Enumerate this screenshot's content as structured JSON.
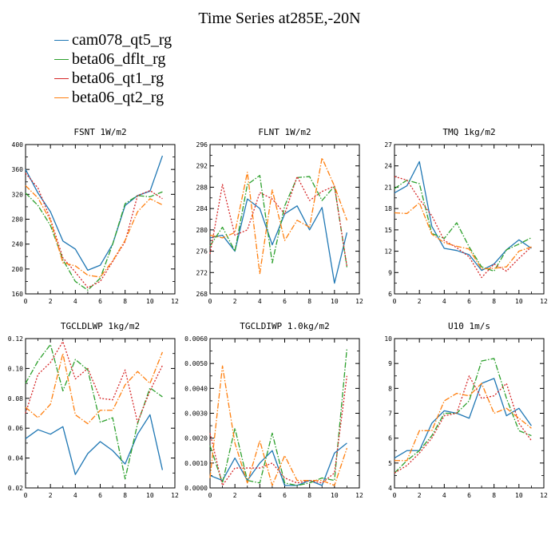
{
  "figure": {
    "title": "Time Series at285E,-20N",
    "legend": [
      {
        "label": "cam078_qt5_rg",
        "color": "#1f77b4",
        "dash": "solid"
      },
      {
        "label": "beta06_dflt_rg",
        "color": "#2ca02c",
        "dash": "dashdot"
      },
      {
        "label": "beta06_qt1_rg",
        "color": "#d62728",
        "dash": "dotted"
      },
      {
        "label": "beta06_qt2_rg",
        "color": "#ff7f0e",
        "dash": "dashdot"
      }
    ]
  },
  "chart_data": [
    {
      "type": "line",
      "title": "FSNT  1W/m2",
      "xlim": [
        0,
        12
      ],
      "ylim": [
        160,
        400
      ],
      "xticks": [
        0,
        2,
        4,
        6,
        8,
        10,
        12
      ],
      "yticks": [
        160,
        200,
        240,
        280,
        320,
        360,
        400
      ],
      "ytick_labels": [
        "160",
        "200",
        "240",
        "280",
        "320",
        "360",
        "400"
      ],
      "x": [
        0,
        1,
        2,
        3,
        4,
        5,
        6,
        7,
        8,
        9,
        10,
        11
      ],
      "series": [
        {
          "name": "cam078_qt5_rg",
          "values": [
            360,
            322,
            292,
            245,
            232,
            198,
            206,
            240,
            302,
            318,
            325,
            382
          ]
        },
        {
          "name": "beta06_dflt_rg",
          "values": [
            322,
            302,
            270,
            215,
            180,
            166,
            185,
            240,
            305,
            318,
            316,
            324
          ]
        },
        {
          "name": "beta06_qt1_rg",
          "values": [
            354,
            330,
            280,
            218,
            195,
            170,
            180,
            212,
            244,
            318,
            326,
            313
          ]
        },
        {
          "name": "beta06_qt2_rg",
          "values": [
            334,
            314,
            278,
            210,
            205,
            190,
            187,
            213,
            246,
            292,
            313,
            303
          ]
        }
      ]
    },
    {
      "type": "line",
      "title": "FLNT  1W/m2",
      "xlim": [
        0,
        12
      ],
      "ylim": [
        268,
        296
      ],
      "xticks": [
        0,
        2,
        4,
        6,
        8,
        10,
        12
      ],
      "yticks": [
        268,
        272,
        276,
        280,
        284,
        288,
        292,
        296
      ],
      "ytick_labels": [
        "268",
        "272",
        "276",
        "280",
        "284",
        "288",
        "292",
        "296"
      ],
      "x": [
        0,
        1,
        2,
        3,
        4,
        5,
        6,
        7,
        8,
        9,
        10,
        11
      ],
      "series": [
        {
          "name": "cam078_qt5_rg",
          "values": [
            278.5,
            279,
            276,
            285.8,
            284,
            277.2,
            283,
            284.5,
            280,
            284.2,
            270,
            279.5
          ]
        },
        {
          "name": "beta06_dflt_rg",
          "values": [
            277,
            280.5,
            276,
            288.5,
            290.2,
            273.8,
            284.5,
            289.8,
            290,
            285.5,
            288.2,
            273
          ]
        },
        {
          "name": "beta06_qt1_rg",
          "values": [
            275.5,
            288.5,
            279,
            280,
            287,
            285.8,
            283,
            290,
            285.5,
            287.2,
            288.2,
            273.2
          ]
        },
        {
          "name": "beta06_qt2_rg",
          "values": [
            279,
            278.5,
            279.5,
            290.8,
            271.8,
            287.5,
            278,
            281.8,
            280.5,
            293.5,
            288.2,
            281.8
          ]
        }
      ]
    },
    {
      "type": "line",
      "title": "TMQ  1kg/m2",
      "xlim": [
        0,
        12
      ],
      "ylim": [
        6,
        27
      ],
      "xticks": [
        0,
        2,
        4,
        6,
        8,
        10,
        12
      ],
      "yticks": [
        6,
        9,
        12,
        15,
        18,
        21,
        24,
        27
      ],
      "ytick_labels": [
        "6",
        "9",
        "12",
        "15",
        "18",
        "21",
        "24",
        "27"
      ],
      "x": [
        0,
        1,
        2,
        3,
        4,
        5,
        6,
        7,
        8,
        9,
        10,
        11
      ],
      "series": [
        {
          "name": "cam078_qt5_rg",
          "values": [
            20.2,
            21.2,
            24.6,
            15.5,
            12.4,
            12.1,
            11.5,
            9.3,
            10.2,
            12.2,
            13.6,
            12.4
          ]
        },
        {
          "name": "beta06_dflt_rg",
          "values": [
            20.8,
            22,
            21.5,
            14.5,
            13.8,
            16,
            12.6,
            9.8,
            9.2,
            12.2,
            13,
            13.9
          ]
        },
        {
          "name": "beta06_qt1_rg",
          "values": [
            22.5,
            22,
            19.3,
            17,
            13.5,
            12.5,
            11.2,
            8.3,
            10.2,
            9.2,
            11,
            12.6
          ]
        },
        {
          "name": "beta06_qt2_rg",
          "values": [
            17.4,
            17.3,
            18.8,
            14.4,
            13.2,
            12.7,
            12.3,
            9.5,
            9.6,
            9.8,
            12,
            12.6
          ]
        }
      ]
    },
    {
      "type": "line",
      "title": "TGCLDLWP  1kg/m2",
      "xlim": [
        0,
        12
      ],
      "ylim": [
        0.02,
        0.12
      ],
      "xticks": [
        0,
        2,
        4,
        6,
        8,
        10,
        12
      ],
      "yticks": [
        0.02,
        0.04,
        0.06,
        0.08,
        0.1,
        0.12
      ],
      "ytick_labels": [
        "0.02",
        "0.04",
        "0.06",
        "0.08",
        "0.10",
        "0.12"
      ],
      "x": [
        0,
        1,
        2,
        3,
        4,
        5,
        6,
        7,
        8,
        9,
        10,
        11
      ],
      "series": [
        {
          "name": "cam078_qt5_rg",
          "values": [
            0.053,
            0.059,
            0.056,
            0.061,
            0.029,
            0.043,
            0.051,
            0.045,
            0.036,
            0.056,
            0.069,
            0.032
          ]
        },
        {
          "name": "beta06_dflt_rg",
          "values": [
            0.09,
            0.105,
            0.116,
            0.085,
            0.106,
            0.099,
            0.064,
            0.067,
            0.026,
            0.063,
            0.087,
            0.081
          ]
        },
        {
          "name": "beta06_qt1_rg",
          "values": [
            0.07,
            0.096,
            0.104,
            0.118,
            0.093,
            0.1,
            0.08,
            0.079,
            0.099,
            0.064,
            0.085,
            0.102
          ]
        },
        {
          "name": "beta06_qt2_rg",
          "values": [
            0.074,
            0.067,
            0.076,
            0.11,
            0.069,
            0.063,
            0.072,
            0.072,
            0.089,
            0.098,
            0.09,
            0.111
          ]
        }
      ]
    },
    {
      "type": "line",
      "title": "TGCLDIWP  1.0kg/m2",
      "xlim": [
        0,
        12
      ],
      "ylim": [
        0,
        0.006
      ],
      "xticks": [
        0,
        2,
        4,
        6,
        8,
        10,
        12
      ],
      "yticks": [
        0,
        0.001,
        0.002,
        0.003,
        0.004,
        0.005,
        0.006
      ],
      "ytick_labels": [
        "0.0000",
        "0.0010",
        "0.0020",
        "0.0030",
        "0.0040",
        "0.0050",
        "0.0060"
      ],
      "x": [
        0,
        1,
        2,
        3,
        4,
        5,
        6,
        7,
        8,
        9,
        10,
        11
      ],
      "series": [
        {
          "name": "cam078_qt5_rg",
          "values": [
            0.0005,
            0.0003,
            0.0012,
            0.0003,
            0.001,
            0.0015,
            0.0001,
            0.0001,
            0.0003,
            0.0001,
            0.0014,
            0.0018
          ]
        },
        {
          "name": "beta06_dflt_rg",
          "values": [
            0.0017,
            0.0002,
            0.0024,
            0.0003,
            0.0002,
            0.0022,
            0.0002,
            0.0001,
            0.0002,
            0.0004,
            0.0003,
            0.0056
          ]
        },
        {
          "name": "beta06_qt1_rg",
          "values": [
            0.0022,
            0.0001,
            0.0008,
            0.0008,
            0.0008,
            0.001,
            0.0004,
            0.0002,
            0.0003,
            0.0002,
            0.0006,
            0.0045
          ]
        },
        {
          "name": "beta06_qt2_rg",
          "values": [
            0.0004,
            0.0049,
            0.0018,
            0.0002,
            0.0019,
            0.0001,
            0.0013,
            0.0003,
            0.0003,
            0.0003,
            0.0001,
            0.0016
          ]
        }
      ]
    },
    {
      "type": "line",
      "title": "U10  1m/s",
      "xlim": [
        0,
        12
      ],
      "ylim": [
        4,
        10
      ],
      "xticks": [
        0,
        2,
        4,
        6,
        8,
        10,
        12
      ],
      "yticks": [
        4,
        5,
        6,
        7,
        8,
        9,
        10
      ],
      "ytick_labels": [
        "4",
        "5",
        "6",
        "7",
        "8",
        "9",
        "10"
      ],
      "x": [
        0,
        1,
        2,
        3,
        4,
        5,
        6,
        7,
        8,
        9,
        10,
        11
      ],
      "series": [
        {
          "name": "cam078_qt5_rg",
          "values": [
            5.2,
            5.5,
            5.5,
            6.6,
            7.1,
            7,
            6.8,
            8.2,
            8.4,
            6.9,
            7.2,
            6.5
          ]
        },
        {
          "name": "beta06_dflt_rg",
          "values": [
            4.6,
            5.1,
            5.5,
            6.1,
            7,
            7,
            7.5,
            9.1,
            9.2,
            7.6,
            6.3,
            6.1
          ]
        },
        {
          "name": "beta06_qt1_rg",
          "values": [
            4.6,
            4.9,
            5.4,
            6,
            6.9,
            7,
            8.5,
            7.6,
            7.7,
            8.2,
            6.6,
            5.9
          ]
        },
        {
          "name": "beta06_qt2_rg",
          "values": [
            5.1,
            5.1,
            6.3,
            6.3,
            7.5,
            7.8,
            7.7,
            8.2,
            7,
            7.2,
            6.8,
            6.4
          ]
        }
      ]
    }
  ]
}
